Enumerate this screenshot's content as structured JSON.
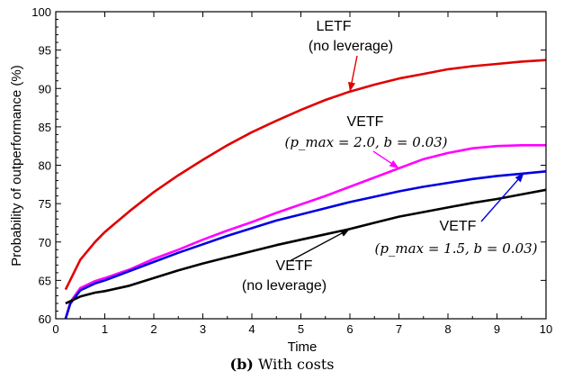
{
  "chart_data": {
    "type": "line",
    "xlabel": "Time",
    "ylabel": "Probability of outperformance (%)",
    "xlim": [
      0,
      10
    ],
    "ylim": [
      60,
      100
    ],
    "x_ticks": [
      0,
      1,
      2,
      3,
      4,
      5,
      6,
      7,
      8,
      9,
      10
    ],
    "y_ticks": [
      60,
      65,
      70,
      75,
      80,
      85,
      90,
      95,
      100
    ],
    "grid": false,
    "series": [
      {
        "color": "#e00000",
        "points": [
          [
            0.2,
            63.8
          ],
          [
            0.5,
            67.7
          ],
          [
            0.8,
            70.0
          ],
          [
            1.0,
            71.3
          ],
          [
            1.5,
            74.0
          ],
          [
            2.0,
            76.5
          ],
          [
            2.5,
            78.7
          ],
          [
            3.0,
            80.7
          ],
          [
            3.5,
            82.6
          ],
          [
            4.0,
            84.3
          ],
          [
            4.5,
            85.8
          ],
          [
            5.0,
            87.2
          ],
          [
            5.5,
            88.5
          ],
          [
            6.0,
            89.6
          ],
          [
            6.5,
            90.5
          ],
          [
            7.0,
            91.3
          ],
          [
            7.5,
            91.9
          ],
          [
            8.0,
            92.5
          ],
          [
            8.5,
            92.9
          ],
          [
            9.0,
            93.2
          ],
          [
            9.5,
            93.5
          ],
          [
            10.0,
            93.7
          ]
        ]
      },
      {
        "color": "#ff00ff",
        "points": [
          [
            0.2,
            60.0
          ],
          [
            0.3,
            62.2
          ],
          [
            0.5,
            64.0
          ],
          [
            0.8,
            64.9
          ],
          [
            1.0,
            65.3
          ],
          [
            1.5,
            66.4
          ],
          [
            2.0,
            67.8
          ],
          [
            2.5,
            69.0
          ],
          [
            3.0,
            70.3
          ],
          [
            3.5,
            71.5
          ],
          [
            4.0,
            72.6
          ],
          [
            4.5,
            73.8
          ],
          [
            5.0,
            74.9
          ],
          [
            5.5,
            76.0
          ],
          [
            6.0,
            77.2
          ],
          [
            6.5,
            78.4
          ],
          [
            7.0,
            79.6
          ],
          [
            7.5,
            80.8
          ],
          [
            8.0,
            81.6
          ],
          [
            8.5,
            82.2
          ],
          [
            9.0,
            82.5
          ],
          [
            9.5,
            82.6
          ],
          [
            10.0,
            82.6
          ]
        ]
      },
      {
        "color": "#0000e0",
        "points": [
          [
            0.2,
            60.0
          ],
          [
            0.3,
            62.0
          ],
          [
            0.5,
            63.7
          ],
          [
            0.8,
            64.6
          ],
          [
            1.0,
            65.0
          ],
          [
            1.5,
            66.2
          ],
          [
            2.0,
            67.4
          ],
          [
            2.5,
            68.6
          ],
          [
            3.0,
            69.7
          ],
          [
            3.5,
            70.8
          ],
          [
            4.0,
            71.8
          ],
          [
            4.5,
            72.8
          ],
          [
            5.0,
            73.6
          ],
          [
            5.5,
            74.4
          ],
          [
            6.0,
            75.2
          ],
          [
            6.5,
            75.9
          ],
          [
            7.0,
            76.6
          ],
          [
            7.5,
            77.2
          ],
          [
            8.0,
            77.7
          ],
          [
            8.5,
            78.2
          ],
          [
            9.0,
            78.6
          ],
          [
            9.5,
            78.9
          ],
          [
            10.0,
            79.2
          ]
        ]
      },
      {
        "color": "#000000",
        "points": [
          [
            0.2,
            62.0
          ],
          [
            0.5,
            62.9
          ],
          [
            0.8,
            63.4
          ],
          [
            1.0,
            63.6
          ],
          [
            1.5,
            64.3
          ],
          [
            2.0,
            65.3
          ],
          [
            2.5,
            66.3
          ],
          [
            3.0,
            67.2
          ],
          [
            3.5,
            68.0
          ],
          [
            4.0,
            68.8
          ],
          [
            4.5,
            69.6
          ],
          [
            5.0,
            70.3
          ],
          [
            5.5,
            71.0
          ],
          [
            6.0,
            71.7
          ],
          [
            6.5,
            72.5
          ],
          [
            7.0,
            73.3
          ],
          [
            7.5,
            73.9
          ],
          [
            8.0,
            74.5
          ],
          [
            8.5,
            75.1
          ],
          [
            9.0,
            75.6
          ],
          [
            9.5,
            76.2
          ],
          [
            10.0,
            76.8
          ]
        ]
      }
    ],
    "annotations": [
      {
        "lines": [
          "LETF",
          "(no leverage)"
        ],
        "color": "#e00000",
        "target": [
          6.0,
          89.6
        ]
      },
      {
        "lines": [
          "VETF",
          "(p_max = 2.0, b = 0.03)"
        ],
        "color": "#ff00ff",
        "target": [
          7.0,
          79.6
        ]
      },
      {
        "lines": [
          "VETF",
          "(p_max = 1.5, b = 0.03)"
        ],
        "color": "#0000e0",
        "target": [
          9.55,
          79.0
        ]
      },
      {
        "lines": [
          "VETF",
          "(no leverage)"
        ],
        "color": "#000000",
        "target": [
          6.0,
          71.7
        ]
      }
    ]
  },
  "caption": {
    "label": "(b)",
    "text": "With costs"
  }
}
